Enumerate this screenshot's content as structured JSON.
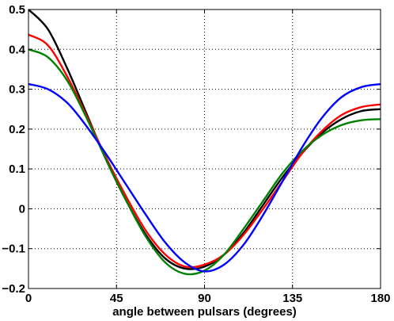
{
  "chart_data": {
    "type": "line",
    "title": "",
    "xlabel": "angle between pulsars (degrees)",
    "ylabel": "",
    "xlim": [
      0,
      180
    ],
    "ylim": [
      -0.2,
      0.5
    ],
    "grid": true,
    "xticks": [
      0,
      45,
      90,
      135,
      180
    ],
    "xtick_labels": [
      "0",
      "45",
      "90",
      "135",
      "180"
    ],
    "yticks": [
      0.5,
      0.4,
      0.3,
      0.2,
      0.1,
      0,
      -0.1,
      -0.2
    ],
    "ytick_labels": [
      "0.5",
      "0.4",
      "0.3",
      "0.2",
      "0.1",
      "0",
      "−0.1",
      "−0.2"
    ],
    "series": [
      {
        "color": "#000000",
        "x": [
          0,
          10,
          20,
          30,
          40,
          50,
          60,
          70,
          80,
          90,
          100,
          110,
          120,
          130,
          140,
          150,
          160,
          170,
          180
        ],
        "y": [
          0.5,
          0.45,
          0.35,
          0.235,
          0.12,
          0.02,
          -0.065,
          -0.125,
          -0.15,
          -0.145,
          -0.115,
          -0.06,
          0.01,
          0.08,
          0.14,
          0.19,
          0.225,
          0.245,
          0.25
        ]
      },
      {
        "color": "#ff0000",
        "x": [
          0,
          10,
          20,
          30,
          40,
          50,
          60,
          70,
          80,
          90,
          100,
          110,
          120,
          130,
          140,
          150,
          160,
          170,
          180
        ],
        "y": [
          0.437,
          0.41,
          0.33,
          0.23,
          0.125,
          0.03,
          -0.055,
          -0.115,
          -0.145,
          -0.14,
          -0.115,
          -0.065,
          0.0,
          0.07,
          0.14,
          0.195,
          0.235,
          0.255,
          0.262
        ]
      },
      {
        "color": "#008000",
        "x": [
          0,
          10,
          20,
          30,
          40,
          50,
          60,
          70,
          80,
          90,
          100,
          110,
          120,
          130,
          140,
          150,
          160,
          170,
          180
        ],
        "y": [
          0.4,
          0.38,
          0.32,
          0.225,
          0.12,
          0.02,
          -0.07,
          -0.135,
          -0.163,
          -0.155,
          -0.115,
          -0.05,
          0.02,
          0.09,
          0.145,
          0.185,
          0.21,
          0.222,
          0.225
        ]
      },
      {
        "color": "#0000ff",
        "x": [
          0,
          10,
          20,
          30,
          40,
          50,
          60,
          70,
          80,
          90,
          100,
          110,
          120,
          130,
          140,
          150,
          160,
          170,
          180
        ],
        "y": [
          0.313,
          0.3,
          0.265,
          0.205,
          0.135,
          0.06,
          -0.015,
          -0.085,
          -0.135,
          -0.157,
          -0.14,
          -0.09,
          -0.015,
          0.07,
          0.155,
          0.228,
          0.28,
          0.305,
          0.313
        ]
      }
    ]
  }
}
